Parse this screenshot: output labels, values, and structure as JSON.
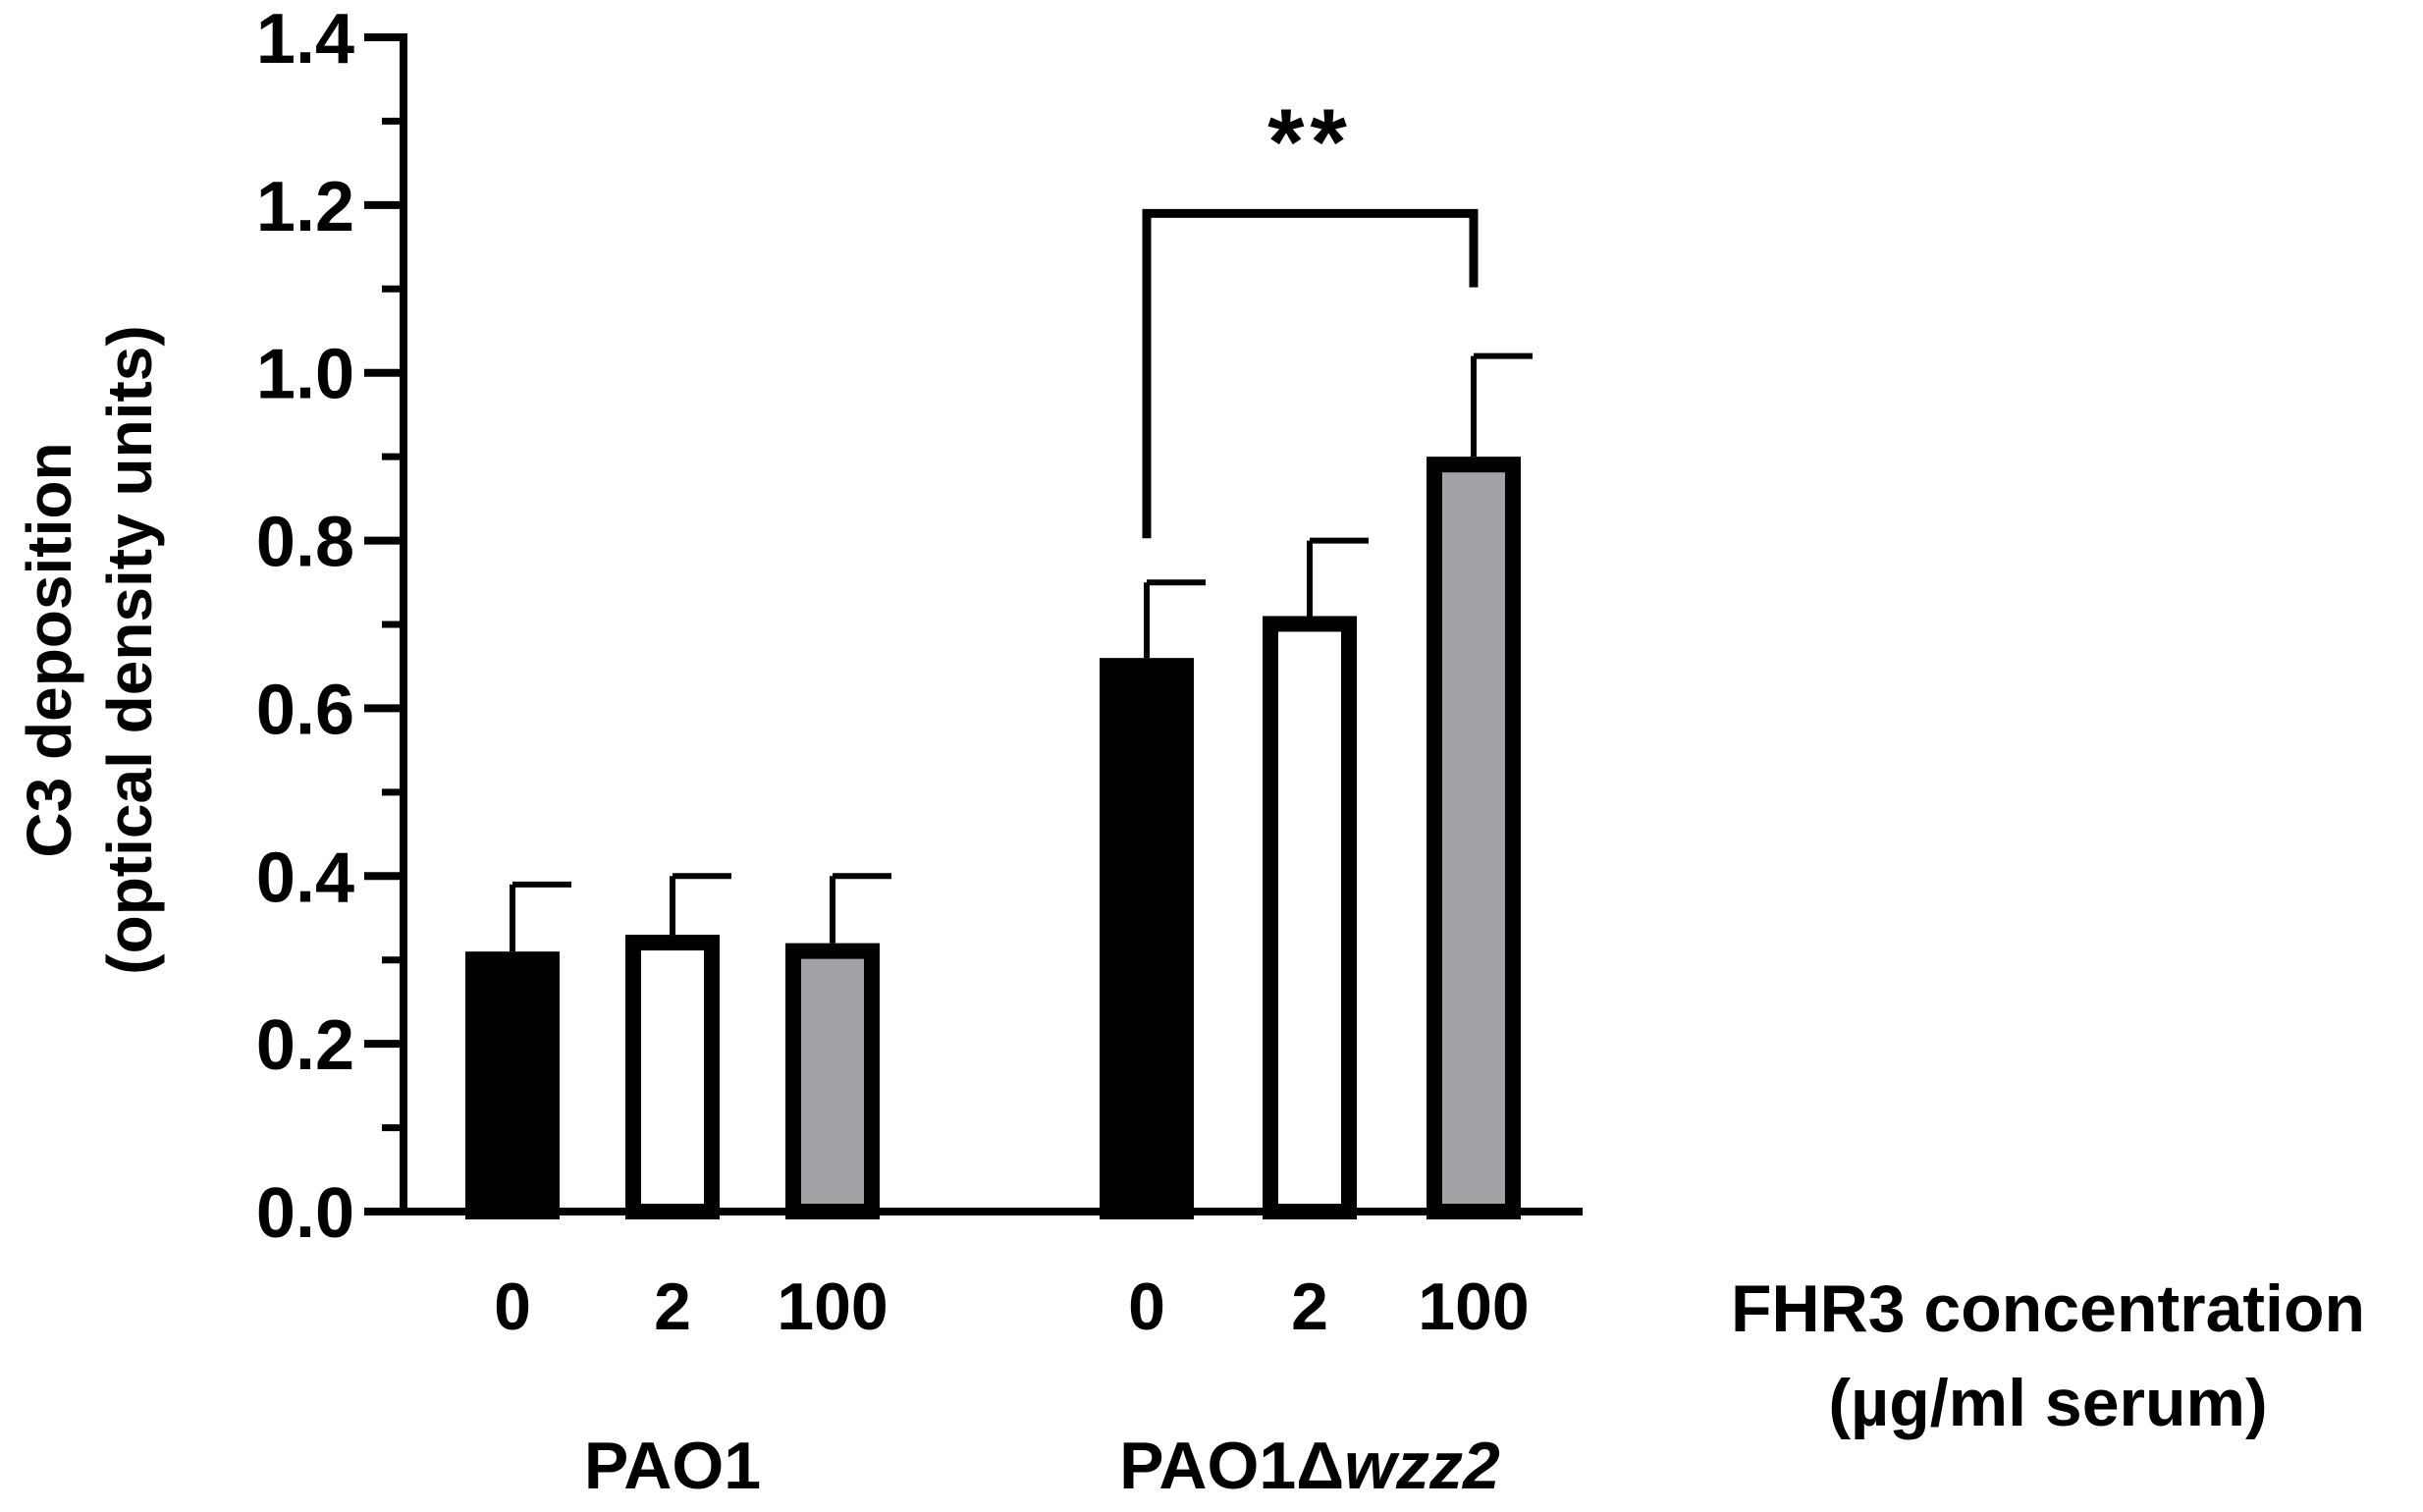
{
  "chart_data": {
    "type": "bar",
    "ylabel_line1": "C3 deposition",
    "ylabel_line2": "(optical density units)",
    "xlabel_line1": "FHR3 concentration",
    "xlabel_line2": "(µg/ml serum)",
    "ylim": [
      0,
      1.4
    ],
    "yticks": [
      "0.0",
      "0.2",
      "0.4",
      "0.6",
      "0.8",
      "1.0",
      "1.2",
      "1.4"
    ],
    "y_minor_step": 0.1,
    "grid": false,
    "legend": "none",
    "groups": [
      {
        "name": "PAO1",
        "name_prefix": "PAO1",
        "name_suffix": "",
        "bars": [
          {
            "category": "0",
            "value": 0.31,
            "error": 0.08,
            "fill": "black"
          },
          {
            "category": "2",
            "value": 0.33,
            "error": 0.07,
            "fill": "white"
          },
          {
            "category": "100",
            "value": 0.32,
            "error": 0.08,
            "fill": "grey"
          }
        ]
      },
      {
        "name": "PAO1Δwzz2",
        "name_prefix": "PAO1Δ",
        "name_suffix": "wzz2",
        "bars": [
          {
            "category": "0",
            "value": 0.66,
            "error": 0.09,
            "fill": "black"
          },
          {
            "category": "2",
            "value": 0.71,
            "error": 0.09,
            "fill": "white"
          },
          {
            "category": "100",
            "value": 0.9,
            "error": 0.12,
            "fill": "grey"
          }
        ]
      }
    ],
    "significance": {
      "label": "**",
      "group": 1,
      "from_bar": 0,
      "to_bar": 2,
      "bracket_y": 1.19
    },
    "colors": {
      "black": "#000000",
      "white": "#ffffff",
      "grey": "#a2a2a7",
      "axis": "#000000"
    }
  }
}
